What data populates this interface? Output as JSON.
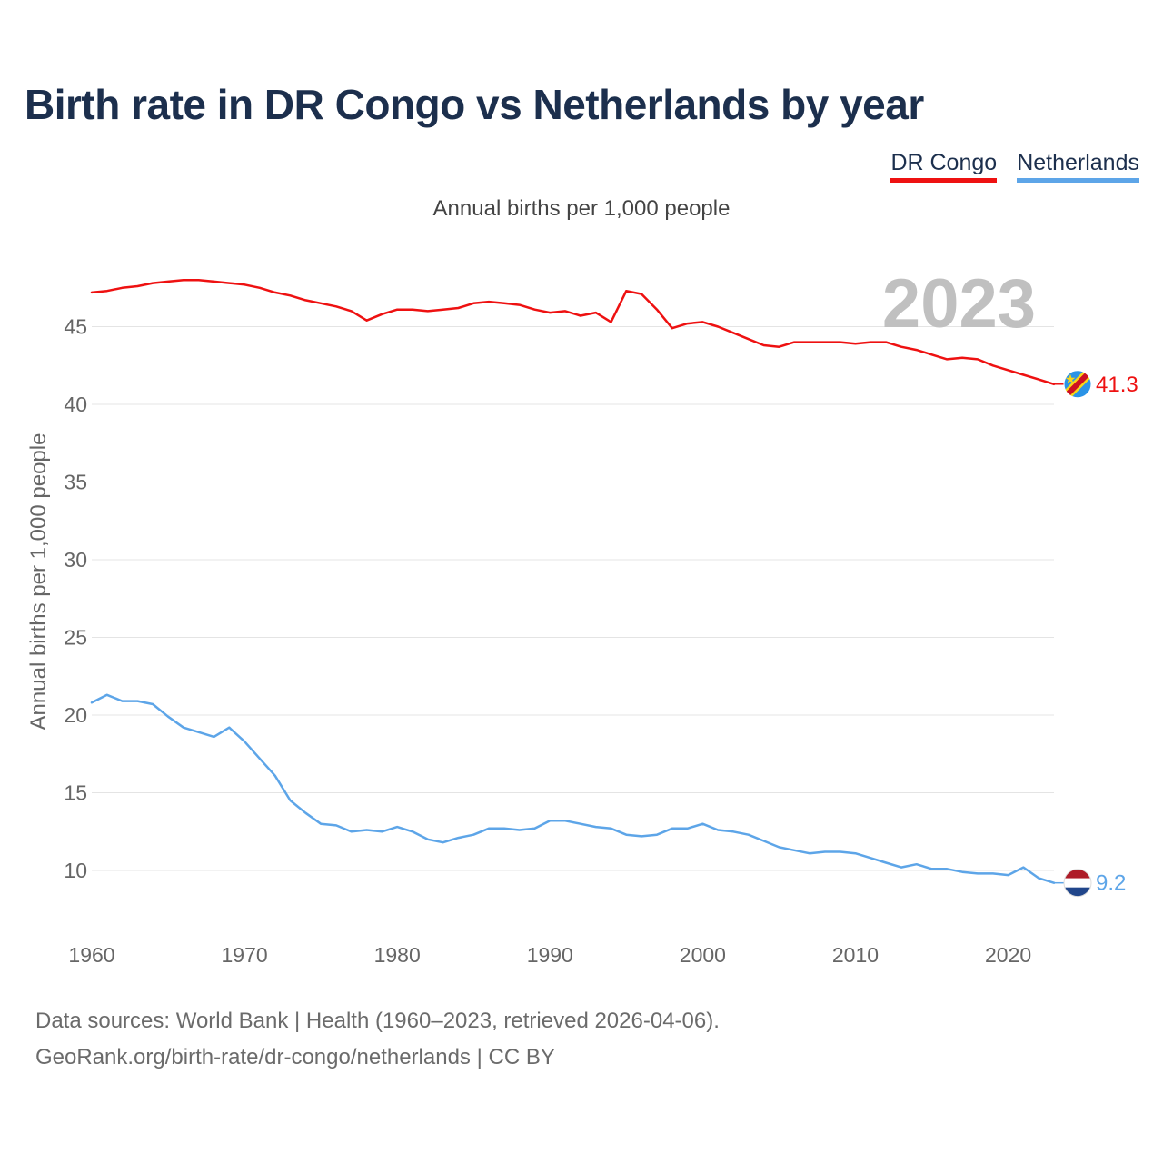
{
  "title": "Birth rate in DR Congo vs Netherlands by year",
  "subtitle": "Annual births per 1,000 people",
  "legend": {
    "items": [
      {
        "label": "DR Congo",
        "color": "#ee1111"
      },
      {
        "label": "Netherlands",
        "color": "#5da5e8"
      }
    ]
  },
  "footer": {
    "line1": "Data sources: World Bank | Health (1960–2023, retrieved 2026-04-06).",
    "line2": "GeoRank.org/birth-rate/dr-congo/netherlands | CC BY"
  },
  "chart_data": {
    "type": "line",
    "title": "Birth rate in DR Congo vs Netherlands by year",
    "subtitle": "Annual births per 1,000 people",
    "xlabel": "",
    "ylabel": "Annual births per 1,000 people",
    "xlim": [
      1960,
      2023
    ],
    "ylim": [
      6.5,
      48.5
    ],
    "x_ticks": [
      1960,
      1970,
      1980,
      1990,
      2000,
      2010,
      2020
    ],
    "y_ticks": [
      10,
      15,
      20,
      25,
      30,
      35,
      40,
      45
    ],
    "grid": true,
    "year_label": "2023",
    "x": [
      1960,
      1961,
      1962,
      1963,
      1964,
      1965,
      1966,
      1967,
      1968,
      1969,
      1970,
      1971,
      1972,
      1973,
      1974,
      1975,
      1976,
      1977,
      1978,
      1979,
      1980,
      1981,
      1982,
      1983,
      1984,
      1985,
      1986,
      1987,
      1988,
      1989,
      1990,
      1991,
      1992,
      1993,
      1994,
      1995,
      1996,
      1997,
      1998,
      1999,
      2000,
      2001,
      2002,
      2003,
      2004,
      2005,
      2006,
      2007,
      2008,
      2009,
      2010,
      2011,
      2012,
      2013,
      2014,
      2015,
      2016,
      2017,
      2018,
      2019,
      2020,
      2021,
      2022,
      2023
    ],
    "series": [
      {
        "name": "DR Congo",
        "color": "#ee1111",
        "end_label": "41.3",
        "values": [
          47.2,
          47.3,
          47.5,
          47.6,
          47.8,
          47.9,
          48.0,
          48.0,
          47.9,
          47.8,
          47.7,
          47.5,
          47.2,
          47.0,
          46.7,
          46.5,
          46.3,
          46.0,
          45.4,
          45.8,
          46.1,
          46.1,
          46.0,
          46.1,
          46.2,
          46.5,
          46.6,
          46.5,
          46.4,
          46.1,
          45.9,
          46.0,
          45.7,
          45.9,
          45.3,
          47.3,
          47.1,
          46.1,
          44.9,
          45.2,
          45.3,
          45.0,
          44.6,
          44.2,
          43.8,
          43.7,
          44.0,
          44.0,
          44.0,
          44.0,
          43.9,
          44.0,
          44.0,
          43.7,
          43.5,
          43.2,
          42.9,
          43.0,
          42.9,
          42.5,
          42.2,
          41.9,
          41.6,
          41.3
        ]
      },
      {
        "name": "Netherlands",
        "color": "#5da5e8",
        "end_label": "9.2",
        "values": [
          20.8,
          21.3,
          20.9,
          20.9,
          20.7,
          19.9,
          19.2,
          18.9,
          18.6,
          19.2,
          18.3,
          17.2,
          16.1,
          14.5,
          13.7,
          13.0,
          12.9,
          12.5,
          12.6,
          12.5,
          12.8,
          12.5,
          12.0,
          11.8,
          12.1,
          12.3,
          12.7,
          12.7,
          12.6,
          12.7,
          13.2,
          13.2,
          13.0,
          12.8,
          12.7,
          12.3,
          12.2,
          12.3,
          12.7,
          12.7,
          13.0,
          12.6,
          12.5,
          12.3,
          11.9,
          11.5,
          11.3,
          11.1,
          11.2,
          11.2,
          11.1,
          10.8,
          10.5,
          10.2,
          10.4,
          10.1,
          10.1,
          9.9,
          9.8,
          9.8,
          9.7,
          10.2,
          9.5,
          9.2
        ]
      }
    ]
  }
}
